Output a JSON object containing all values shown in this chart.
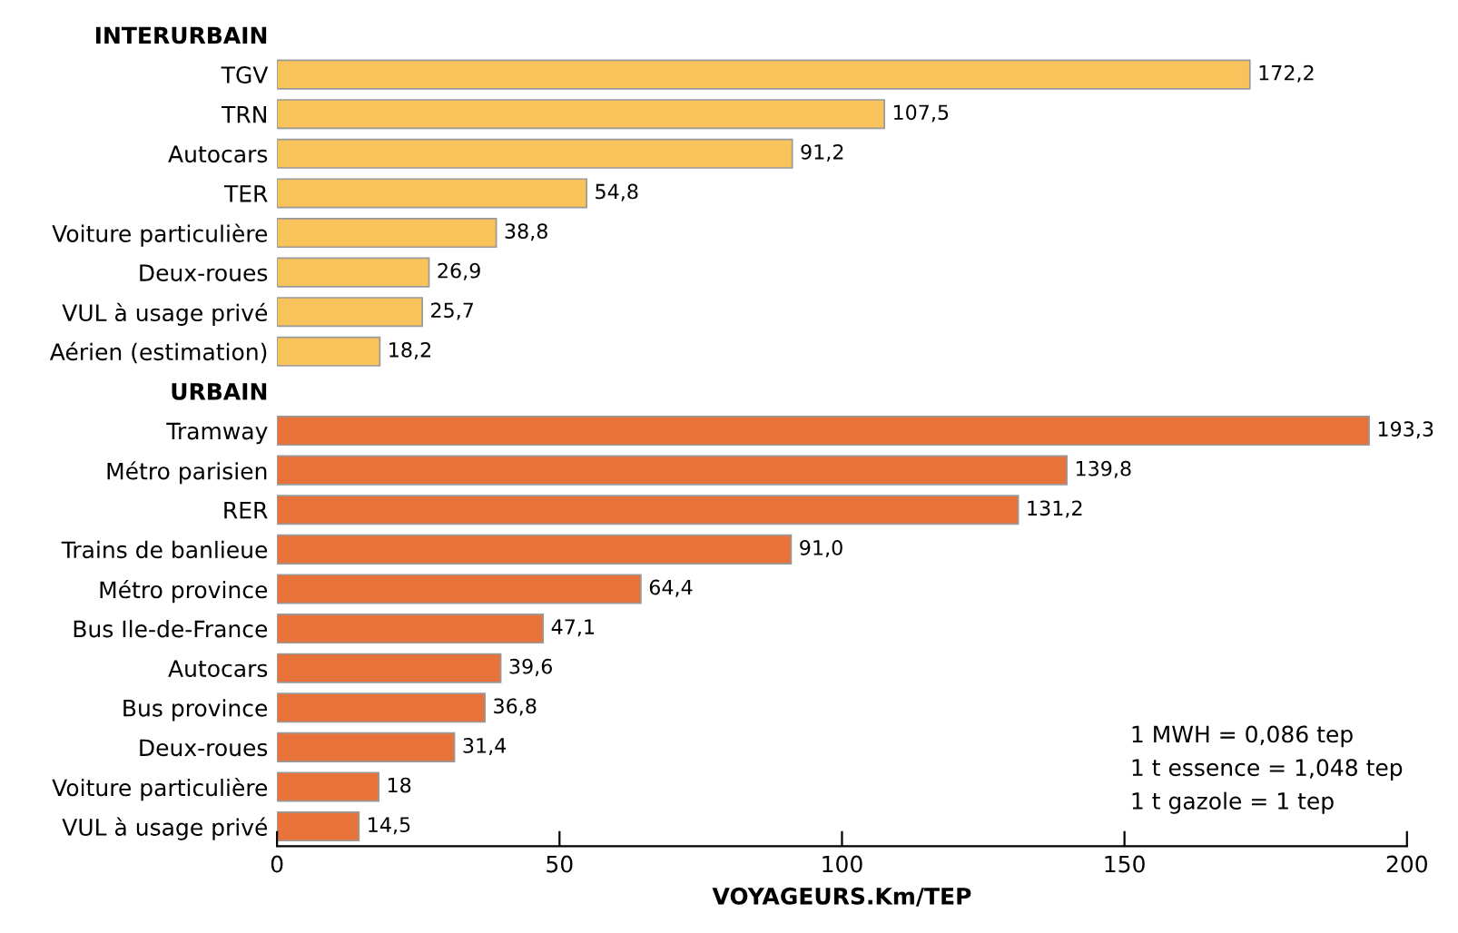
{
  "chart_data": {
    "type": "bar",
    "orientation": "horizontal",
    "xlabel": "VOYAGEURS.Km/TEP",
    "categories": [
      "INTERURBAIN",
      "TGV",
      "TRN",
      "Autocars",
      "TER",
      "Voiture particulière",
      "Deux-roues",
      "VUL à usage privé",
      "Aérien (estimation)",
      "URBAIN",
      "Tramway",
      "Métro parisien",
      "RER",
      "Trains de banlieue",
      "Métro province",
      "Bus Ile-de-France",
      "Autocars",
      "Bus province",
      "Deux-roues",
      "Voiture particulière",
      "VUL à usage privé"
    ],
    "values": [
      null,
      172.2,
      107.5,
      91.2,
      54.8,
      38.8,
      26.9,
      25.7,
      18.2,
      null,
      193.3,
      139.8,
      131.2,
      91.0,
      64.4,
      47.1,
      39.6,
      36.8,
      31.4,
      18,
      14.5
    ],
    "value_labels": [
      null,
      "172,2",
      "107,5",
      "91,2",
      "54,8",
      "38,8",
      "26,9",
      "25,7",
      "18,2",
      null,
      "193,3",
      "139,8",
      "131,2",
      "91,0",
      "64,4",
      "47,1",
      "39,6",
      "36,8",
      "31,4",
      "18",
      "14,5"
    ],
    "colors": [
      "#f8c35a",
      "#f8c35a",
      "#f8c35a",
      "#f8c35a",
      "#f8c35a",
      "#f8c35a",
      "#f8c35a",
      "#f8c35a",
      "#f8c35a",
      "#e8733a",
      "#e8733a",
      "#e8733a",
      "#e8733a",
      "#e8733a",
      "#e8733a",
      "#e8733a",
      "#e8733a",
      "#e8733a",
      "#e8733a",
      "#e8733a",
      "#e8733a"
    ],
    "xlim": [
      0,
      200
    ],
    "xticks": [
      0,
      50,
      100,
      150,
      200
    ],
    "grid": false,
    "legend": false,
    "annotations": [
      "1 MWH = 0,086 tep",
      "1 t essence = 1,048 tep",
      "1 t gazole = 1 tep"
    ]
  }
}
